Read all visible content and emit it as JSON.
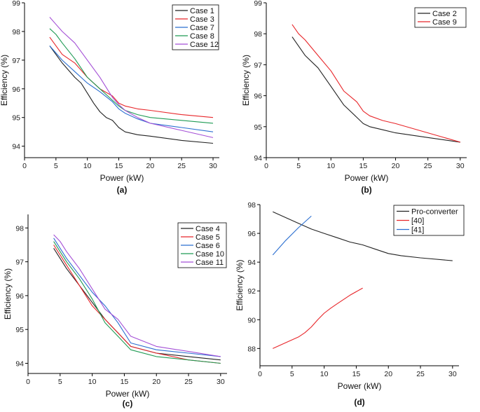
{
  "chart_data": [
    {
      "type": "line",
      "panel_label": "(a)",
      "xlabel": "Power (kW)",
      "ylabel": "Efficiency (%)",
      "xlim": [
        0,
        31
      ],
      "ylim": [
        93.6,
        99
      ],
      "xticks": [
        0,
        5,
        10,
        15,
        20,
        25,
        30
      ],
      "yticks": [
        94,
        95,
        96,
        97,
        98,
        99
      ],
      "legend_position": "top-right",
      "series": [
        {
          "name": "Case 1",
          "color": "#222222",
          "x": [
            4,
            6,
            8,
            9,
            10,
            11,
            12,
            13,
            14,
            15,
            16,
            18,
            20,
            25,
            30
          ],
          "y": [
            97.5,
            96.9,
            96.4,
            96.2,
            95.85,
            95.5,
            95.2,
            95.0,
            94.9,
            94.65,
            94.5,
            94.4,
            94.35,
            94.2,
            94.1
          ]
        },
        {
          "name": "Case 3",
          "color": "#e8262a",
          "x": [
            4,
            6,
            8,
            10,
            12,
            14,
            15,
            16,
            18,
            20,
            25,
            30
          ],
          "y": [
            97.8,
            97.2,
            96.9,
            96.4,
            96.0,
            95.75,
            95.5,
            95.4,
            95.3,
            95.25,
            95.1,
            95.0
          ]
        },
        {
          "name": "Case 7",
          "color": "#2b6fd1",
          "x": [
            4,
            6,
            8,
            10,
            12,
            14,
            15,
            16,
            18,
            20,
            25,
            30
          ],
          "y": [
            97.5,
            97.0,
            96.6,
            96.2,
            95.9,
            95.55,
            95.3,
            95.15,
            94.95,
            94.8,
            94.65,
            94.5
          ]
        },
        {
          "name": "Case 8",
          "color": "#1f9b54",
          "x": [
            4,
            5,
            6,
            8,
            10,
            12,
            14,
            15,
            16,
            18,
            20,
            25,
            30
          ],
          "y": [
            98.1,
            97.9,
            97.6,
            97.05,
            96.4,
            96.0,
            95.6,
            95.4,
            95.25,
            95.1,
            95.0,
            94.9,
            94.8
          ]
        },
        {
          "name": "Case 12",
          "color": "#a44fd6",
          "x": [
            4,
            5,
            6,
            8,
            10,
            12,
            14,
            15,
            16,
            18,
            20,
            25,
            30
          ],
          "y": [
            98.5,
            98.25,
            98.0,
            97.6,
            97.0,
            96.4,
            95.7,
            95.45,
            95.25,
            95.0,
            94.8,
            94.55,
            94.3
          ]
        }
      ]
    },
    {
      "type": "line",
      "panel_label": "(b)",
      "xlabel": "Power (kW)",
      "ylabel": "Efficiency (%)",
      "xlim": [
        0,
        31
      ],
      "ylim": [
        94,
        99
      ],
      "xticks": [
        0,
        5,
        10,
        15,
        20,
        25,
        30
      ],
      "yticks": [
        94,
        95,
        96,
        97,
        98,
        99
      ],
      "legend_position": "top-right",
      "series": [
        {
          "name": "Case 2",
          "color": "#222222",
          "x": [
            4,
            6,
            8,
            10,
            12,
            14,
            15,
            16,
            18,
            20,
            25,
            30
          ],
          "y": [
            97.9,
            97.3,
            96.9,
            96.3,
            95.7,
            95.3,
            95.1,
            95.0,
            94.9,
            94.8,
            94.65,
            94.5
          ]
        },
        {
          "name": "Case 9",
          "color": "#e8262a",
          "x": [
            4,
            5,
            6,
            8,
            10,
            12,
            14,
            15,
            16,
            18,
            20,
            25,
            30
          ],
          "y": [
            98.3,
            98.0,
            97.8,
            97.3,
            96.8,
            96.15,
            95.8,
            95.5,
            95.35,
            95.2,
            95.1,
            94.8,
            94.5
          ]
        }
      ]
    },
    {
      "type": "line",
      "panel_label": "(c)",
      "xlabel": "Power (kW)",
      "ylabel": "Efficiency (%)",
      "xlim": [
        0,
        31
      ],
      "ylim": [
        93.7,
        98.4
      ],
      "xticks": [
        0,
        5,
        10,
        15,
        20,
        25,
        30
      ],
      "yticks": [
        94,
        95,
        96,
        97,
        98
      ],
      "legend_position": "top-right",
      "series": [
        {
          "name": "Case 4",
          "color": "#222222",
          "x": [
            4,
            6,
            8,
            10,
            12,
            14,
            16,
            20,
            25,
            30
          ],
          "y": [
            97.4,
            96.8,
            96.3,
            95.8,
            95.3,
            94.9,
            94.5,
            94.3,
            94.2,
            94.1
          ]
        },
        {
          "name": "Case 5",
          "color": "#e8262a",
          "x": [
            4,
            6,
            8,
            10,
            12,
            14,
            16,
            20,
            25,
            30
          ],
          "y": [
            97.5,
            96.9,
            96.3,
            95.7,
            95.3,
            94.9,
            94.5,
            94.3,
            94.1,
            94.0
          ]
        },
        {
          "name": "Case 6",
          "color": "#2b6fd1",
          "x": [
            4,
            6,
            8,
            10,
            12,
            14,
            16,
            20,
            25,
            30
          ],
          "y": [
            97.7,
            97.1,
            96.6,
            96.1,
            95.7,
            95.2,
            94.6,
            94.4,
            94.3,
            94.2
          ]
        },
        {
          "name": "Case 10",
          "color": "#1f9b54",
          "x": [
            4,
            6,
            8,
            10,
            12,
            14,
            16,
            20,
            25,
            30
          ],
          "y": [
            97.6,
            97.0,
            96.5,
            95.9,
            95.2,
            94.8,
            94.4,
            94.2,
            94.1,
            94.0
          ]
        },
        {
          "name": "Case 11",
          "color": "#a44fd6",
          "x": [
            4,
            5,
            6,
            8,
            10,
            12,
            14,
            16,
            20,
            25,
            30
          ],
          "y": [
            97.8,
            97.6,
            97.3,
            96.8,
            96.2,
            95.6,
            95.3,
            94.8,
            94.5,
            94.35,
            94.2
          ]
        }
      ]
    },
    {
      "type": "line",
      "panel_label": "(d)",
      "xlabel": "Power (kW)",
      "ylabel": "Efficiency (%)",
      "xlim": [
        0,
        31
      ],
      "ylim": [
        86.8,
        98
      ],
      "xticks": [
        0,
        5,
        10,
        15,
        20,
        25,
        30
      ],
      "yticks": [
        88,
        90,
        92,
        94,
        96,
        98
      ],
      "legend_position": "top-right",
      "series": [
        {
          "name": "Pro-converter",
          "color": "#222222",
          "x": [
            2,
            4,
            6,
            8,
            10,
            12,
            14,
            16,
            18,
            20,
            22,
            25,
            30
          ],
          "y": [
            97.5,
            97.1,
            96.7,
            96.3,
            96.0,
            95.7,
            95.4,
            95.2,
            94.9,
            94.6,
            94.45,
            94.3,
            94.1
          ]
        },
        {
          "name": "[40]",
          "color": "#e8262a",
          "x": [
            2,
            4,
            6,
            7,
            8,
            9,
            10,
            11,
            12,
            14,
            16
          ],
          "y": [
            88.0,
            88.4,
            88.8,
            89.1,
            89.5,
            90.0,
            90.45,
            90.8,
            91.1,
            91.7,
            92.2
          ]
        },
        {
          "name": "[41]",
          "color": "#2b6fd1",
          "x": [
            2,
            4,
            6,
            8
          ],
          "y": [
            94.5,
            95.5,
            96.4,
            97.2
          ]
        }
      ]
    }
  ]
}
